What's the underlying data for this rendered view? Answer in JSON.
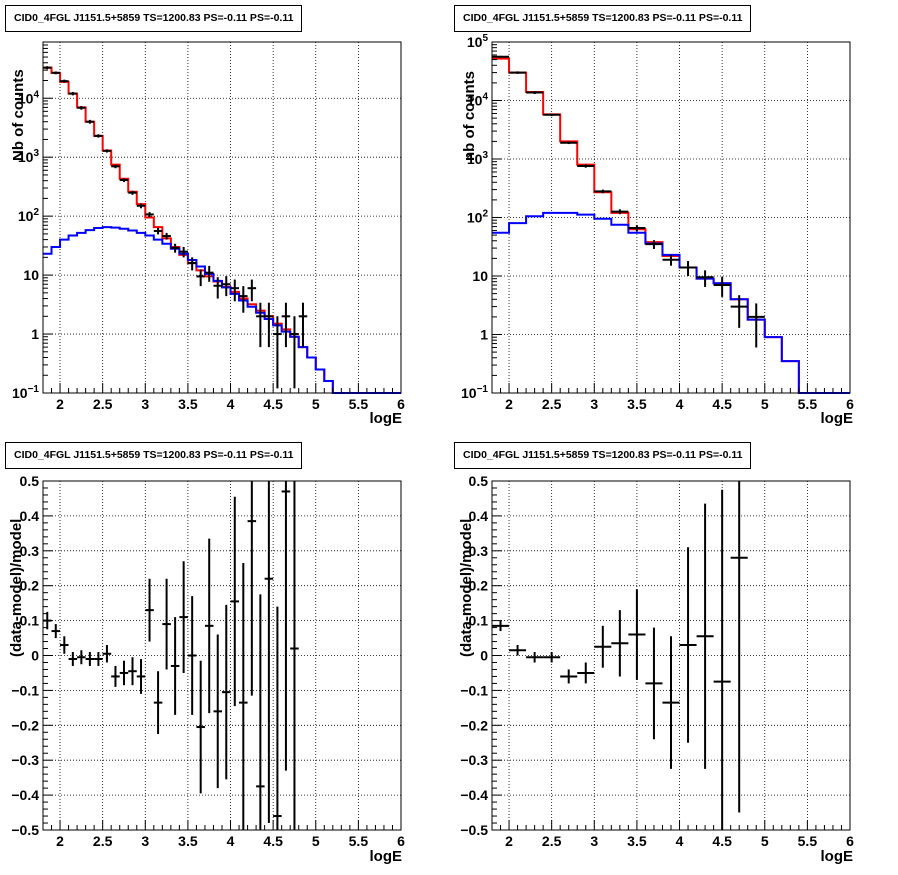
{
  "chart_data": [
    {
      "type": "histogram",
      "title": "CID0_4FGL J1151.5+5859 TS=1200.83 PS=-0.11 PS=-0.11",
      "xlabel": "logE",
      "ylabel": "Nb of counts",
      "xlim": [
        1.8,
        6
      ],
      "ylim": [
        0.1,
        90000
      ],
      "log_y": true,
      "grid": true,
      "x_ticks": [
        "2",
        "2.5",
        "3",
        "3.5",
        "4",
        "4.5",
        "5",
        "5.5",
        "6"
      ],
      "y_ticks": [
        "10^-1",
        "1",
        "10",
        "10^2",
        "10^3",
        "10^4"
      ],
      "bin_edges": [
        1.8,
        1.9,
        2.0,
        2.1,
        2.2,
        2.3,
        2.4,
        2.5,
        2.6,
        2.7,
        2.8,
        2.9,
        3.0,
        3.1,
        3.2,
        3.3,
        3.4,
        3.5,
        3.6,
        3.7,
        3.8,
        3.9,
        4.0,
        4.1,
        4.2,
        4.3,
        4.4,
        4.5,
        4.6,
        4.7,
        4.8,
        4.9,
        5.0,
        5.1,
        5.2,
        5.3,
        5.4,
        5.5,
        5.6,
        5.7,
        5.8,
        5.9,
        6.0
      ],
      "series": [
        {
          "color": "#ff0000",
          "values": [
            33000,
            27000,
            19000,
            12000,
            7000,
            4000,
            2300,
            1300,
            750,
            430,
            260,
            160,
            95,
            65,
            42,
            30,
            22,
            16,
            12,
            9.5,
            7.8,
            6.3,
            5.2,
            4.0,
            3.2,
            2.5,
            2.0,
            1.5,
            1.2,
            0.9,
            0.6,
            0.4,
            0.25,
            0.16,
            0.1,
            0.1,
            0.1,
            0.1,
            0.1,
            0.1,
            0.1,
            0.1
          ]
        },
        {
          "color": "#0000ff",
          "values": [
            23,
            30,
            40,
            47,
            52,
            58,
            63,
            65,
            64,
            61,
            57,
            52,
            47,
            40,
            34,
            28,
            23,
            18,
            14,
            10.5,
            8,
            6.2,
            4.8,
            3.7,
            2.9,
            2.3,
            1.8,
            1.4,
            1.1,
            0.9,
            0.6,
            0.4,
            0.25,
            0.16,
            0.1,
            0.1,
            0.1,
            0.1,
            0.1,
            0.1,
            0.1,
            0.1
          ]
        },
        {
          "color": "#000000",
          "points": [
            {
              "x": 1.85,
              "y": 33000,
              "lo": 31000,
              "hi": 35000
            },
            {
              "x": 1.95,
              "y": 27000,
              "lo": 25500,
              "hi": 28500
            },
            {
              "x": 2.05,
              "y": 19500,
              "lo": 18300,
              "hi": 20700
            },
            {
              "x": 2.15,
              "y": 12000,
              "lo": 11200,
              "hi": 12800
            },
            {
              "x": 2.25,
              "y": 6900,
              "lo": 6400,
              "hi": 7400
            },
            {
              "x": 2.35,
              "y": 4000,
              "lo": 3700,
              "hi": 4300
            },
            {
              "x": 2.45,
              "y": 2300,
              "lo": 2150,
              "hi": 2450
            },
            {
              "x": 2.55,
              "y": 1280,
              "lo": 1200,
              "hi": 1360
            },
            {
              "x": 2.65,
              "y": 700,
              "lo": 650,
              "hi": 750
            },
            {
              "x": 2.75,
              "y": 410,
              "lo": 380,
              "hi": 440
            },
            {
              "x": 2.85,
              "y": 250,
              "lo": 230,
              "hi": 270
            },
            {
              "x": 2.95,
              "y": 150,
              "lo": 136,
              "hi": 164
            },
            {
              "x": 3.05,
              "y": 107,
              "lo": 97,
              "hi": 117
            },
            {
              "x": 3.15,
              "y": 56,
              "lo": 49,
              "hi": 63
            },
            {
              "x": 3.25,
              "y": 46,
              "lo": 40,
              "hi": 52
            },
            {
              "x": 3.35,
              "y": 29,
              "lo": 24,
              "hi": 34
            },
            {
              "x": 3.45,
              "y": 25,
              "lo": 20,
              "hi": 30
            },
            {
              "x": 3.55,
              "y": 16,
              "lo": 12,
              "hi": 20
            },
            {
              "x": 3.65,
              "y": 9.5,
              "lo": 6.5,
              "hi": 12.5
            },
            {
              "x": 3.75,
              "y": 11,
              "lo": 7.7,
              "hi": 14.3
            },
            {
              "x": 3.85,
              "y": 6.6,
              "lo": 4,
              "hi": 9.2
            },
            {
              "x": 3.95,
              "y": 7,
              "lo": 4.4,
              "hi": 9.6
            },
            {
              "x": 4.05,
              "y": 6,
              "lo": 3.6,
              "hi": 8.4
            },
            {
              "x": 4.15,
              "y": 4.4,
              "lo": 2.3,
              "hi": 6.5
            },
            {
              "x": 4.25,
              "y": 6,
              "lo": 3.6,
              "hi": 8.4
            },
            {
              "x": 4.35,
              "y": 2,
              "lo": 0.6,
              "hi": 3.4
            },
            {
              "x": 4.45,
              "y": 2,
              "lo": 0.6,
              "hi": 3.4
            },
            {
              "x": 4.55,
              "y": 1,
              "lo": 0.12,
              "hi": 2
            },
            {
              "x": 4.65,
              "y": 2,
              "lo": 0.6,
              "hi": 3.4
            },
            {
              "x": 4.75,
              "y": 1,
              "lo": 0.12,
              "hi": 2
            },
            {
              "x": 4.85,
              "y": 2,
              "lo": 0.6,
              "hi": 3.4
            }
          ]
        }
      ]
    },
    {
      "type": "histogram",
      "title": "CID0_4FGL J1151.5+5859 TS=1200.83 PS=-0.11 PS=-0.11",
      "xlabel": "logE",
      "ylabel": "nb of counts",
      "xlim": [
        1.8,
        6
      ],
      "ylim": [
        0.1,
        100000
      ],
      "log_y": true,
      "grid": true,
      "x_ticks": [
        "2",
        "2.5",
        "3",
        "3.5",
        "4",
        "4.5",
        "5",
        "5.5",
        "6"
      ],
      "y_ticks": [
        "10^-1",
        "1",
        "10",
        "10^2",
        "10^3",
        "10^4",
        "10^5"
      ],
      "bin_edges": [
        1.8,
        2.0,
        2.2,
        2.4,
        2.6,
        2.8,
        3.0,
        3.2,
        3.4,
        3.6,
        3.8,
        4.0,
        4.2,
        4.4,
        4.6,
        4.8,
        5.0,
        5.2,
        5.4,
        5.6,
        5.8,
        6.0
      ],
      "series": [
        {
          "color": "#ff0000",
          "values": [
            52000,
            30000,
            14000,
            5800,
            2000,
            800,
            270,
            120,
            63,
            38,
            22,
            14,
            9,
            7.5,
            4,
            1.8,
            0.9,
            0.35,
            0.1,
            0.1,
            0.1
          ]
        },
        {
          "color": "#0000ff",
          "values": [
            55,
            80,
            105,
            120,
            120,
            112,
            95,
            75,
            55,
            36,
            23,
            14,
            9,
            7.5,
            4,
            1.8,
            0.9,
            0.35,
            0.1,
            0.1,
            0.1
          ]
        },
        {
          "color": "#000000",
          "points": [
            {
              "x": 1.9,
              "y": 56000,
              "lo": 54000,
              "hi": 58000
            },
            {
              "x": 2.1,
              "y": 30000,
              "lo": 28500,
              "hi": 31500
            },
            {
              "x": 2.3,
              "y": 13700,
              "lo": 12900,
              "hi": 14500
            },
            {
              "x": 2.5,
              "y": 5700,
              "lo": 5400,
              "hi": 6000
            },
            {
              "x": 2.7,
              "y": 1900,
              "lo": 1800,
              "hi": 2000
            },
            {
              "x": 2.9,
              "y": 760,
              "lo": 710,
              "hi": 810
            },
            {
              "x": 3.1,
              "y": 280,
              "lo": 260,
              "hi": 300
            },
            {
              "x": 3.3,
              "y": 126,
              "lo": 114,
              "hi": 138
            },
            {
              "x": 3.5,
              "y": 66,
              "lo": 58,
              "hi": 74
            },
            {
              "x": 3.7,
              "y": 35,
              "lo": 29,
              "hi": 41
            },
            {
              "x": 3.9,
              "y": 19,
              "lo": 15,
              "hi": 23
            },
            {
              "x": 4.1,
              "y": 14,
              "lo": 10,
              "hi": 18
            },
            {
              "x": 4.3,
              "y": 9.5,
              "lo": 6.5,
              "hi": 12.5
            },
            {
              "x": 4.5,
              "y": 7,
              "lo": 4.4,
              "hi": 9.6
            },
            {
              "x": 4.7,
              "y": 3,
              "lo": 1.3,
              "hi": 4.7
            },
            {
              "x": 4.9,
              "y": 2,
              "lo": 0.6,
              "hi": 3.4
            }
          ]
        }
      ]
    },
    {
      "type": "scatter",
      "title": "CID0_4FGL J1151.5+5859 TS=1200.83 PS=-0.11 PS=-0.11",
      "xlabel": "logE",
      "ylabel": "(data-model)/model",
      "xlim": [
        1.8,
        6
      ],
      "ylim": [
        -0.5,
        0.5
      ],
      "grid": true,
      "x_ticks": [
        "2",
        "2.5",
        "3",
        "3.5",
        "4",
        "4.5",
        "5",
        "5.5",
        "6"
      ],
      "y_ticks": [
        "−0.5",
        "−0.4",
        "−0.3",
        "−0.2",
        "−0.1",
        "0",
        "0.1",
        "0.2",
        "0.3",
        "0.4",
        "0.5"
      ],
      "series": [
        {
          "color": "#000000",
          "bin_width": 0.1,
          "points": [
            {
              "x": 1.85,
              "y": 0.1,
              "err": 0.025
            },
            {
              "x": 1.95,
              "y": 0.07,
              "err": 0.02
            },
            {
              "x": 2.05,
              "y": 0.03,
              "err": 0.025
            },
            {
              "x": 2.15,
              "y": -0.01,
              "err": 0.02
            },
            {
              "x": 2.25,
              "y": -0.005,
              "err": 0.02
            },
            {
              "x": 2.35,
              "y": -0.01,
              "err": 0.02
            },
            {
              "x": 2.45,
              "y": -0.01,
              "err": 0.02
            },
            {
              "x": 2.55,
              "y": 0.005,
              "err": 0.025
            },
            {
              "x": 2.65,
              "y": -0.06,
              "err": 0.03
            },
            {
              "x": 2.75,
              "y": -0.05,
              "err": 0.035
            },
            {
              "x": 2.85,
              "y": -0.045,
              "err": 0.04
            },
            {
              "x": 2.95,
              "y": -0.06,
              "err": 0.05
            },
            {
              "x": 3.05,
              "y": 0.13,
              "err": 0.09
            },
            {
              "x": 3.15,
              "y": -0.135,
              "err": 0.09
            },
            {
              "x": 3.25,
              "y": 0.09,
              "err": 0.13
            },
            {
              "x": 3.35,
              "y": -0.03,
              "err": 0.14
            },
            {
              "x": 3.45,
              "y": 0.11,
              "err": 0.16
            },
            {
              "x": 3.55,
              "y": 0.0,
              "err": 0.17
            },
            {
              "x": 3.65,
              "y": -0.205,
              "err": 0.19
            },
            {
              "x": 3.75,
              "y": 0.085,
              "err": 0.25
            },
            {
              "x": 3.85,
              "y": -0.16,
              "err": 0.22
            },
            {
              "x": 3.95,
              "y": -0.105,
              "err": 0.25
            },
            {
              "x": 4.05,
              "y": 0.155,
              "err": 0.3
            },
            {
              "x": 4.15,
              "y": -0.135,
              "err": 0.4
            },
            {
              "x": 4.25,
              "y": 0.385,
              "err": 0.5
            },
            {
              "x": 4.35,
              "y": -0.375,
              "err": 0.55
            },
            {
              "x": 4.45,
              "y": 0.22,
              "err": 0.7
            },
            {
              "x": 4.55,
              "y": -0.46,
              "err": 0.6
            },
            {
              "x": 4.65,
              "y": 0.47,
              "err": 0.8
            },
            {
              "x": 4.75,
              "y": 0.02,
              "err": 0.9
            }
          ]
        }
      ]
    },
    {
      "type": "scatter",
      "title": "CID0_4FGL J1151.5+5859 TS=1200.83 PS=-0.11 PS=-0.11",
      "xlabel": "logE",
      "ylabel": "(data-model)/model",
      "xlim": [
        1.8,
        6
      ],
      "ylim": [
        -0.5,
        0.5
      ],
      "grid": true,
      "x_ticks": [
        "2",
        "2.5",
        "3",
        "3.5",
        "4",
        "4.5",
        "5",
        "5.5",
        "6"
      ],
      "y_ticks": [
        "−0.5",
        "−0.4",
        "−0.3",
        "−0.2",
        "−0.1",
        "0",
        "0.1",
        "0.2",
        "0.3",
        "0.4",
        "0.5"
      ],
      "series": [
        {
          "color": "#000000",
          "bin_width": 0.2,
          "points": [
            {
              "x": 1.9,
              "y": 0.085,
              "err": 0.015
            },
            {
              "x": 2.1,
              "y": 0.015,
              "err": 0.015
            },
            {
              "x": 2.3,
              "y": -0.005,
              "err": 0.015
            },
            {
              "x": 2.5,
              "y": -0.005,
              "err": 0.015
            },
            {
              "x": 2.7,
              "y": -0.06,
              "err": 0.02
            },
            {
              "x": 2.9,
              "y": -0.05,
              "err": 0.03
            },
            {
              "x": 3.1,
              "y": 0.025,
              "err": 0.06
            },
            {
              "x": 3.3,
              "y": 0.035,
              "err": 0.095
            },
            {
              "x": 3.5,
              "y": 0.06,
              "err": 0.13
            },
            {
              "x": 3.7,
              "y": -0.08,
              "err": 0.16
            },
            {
              "x": 3.9,
              "y": -0.135,
              "err": 0.19
            },
            {
              "x": 4.1,
              "y": 0.03,
              "err": 0.28
            },
            {
              "x": 4.3,
              "y": 0.055,
              "err": 0.38
            },
            {
              "x": 4.5,
              "y": -0.075,
              "err": 0.55
            },
            {
              "x": 4.7,
              "y": 0.28,
              "err": 0.73
            }
          ]
        }
      ]
    }
  ]
}
